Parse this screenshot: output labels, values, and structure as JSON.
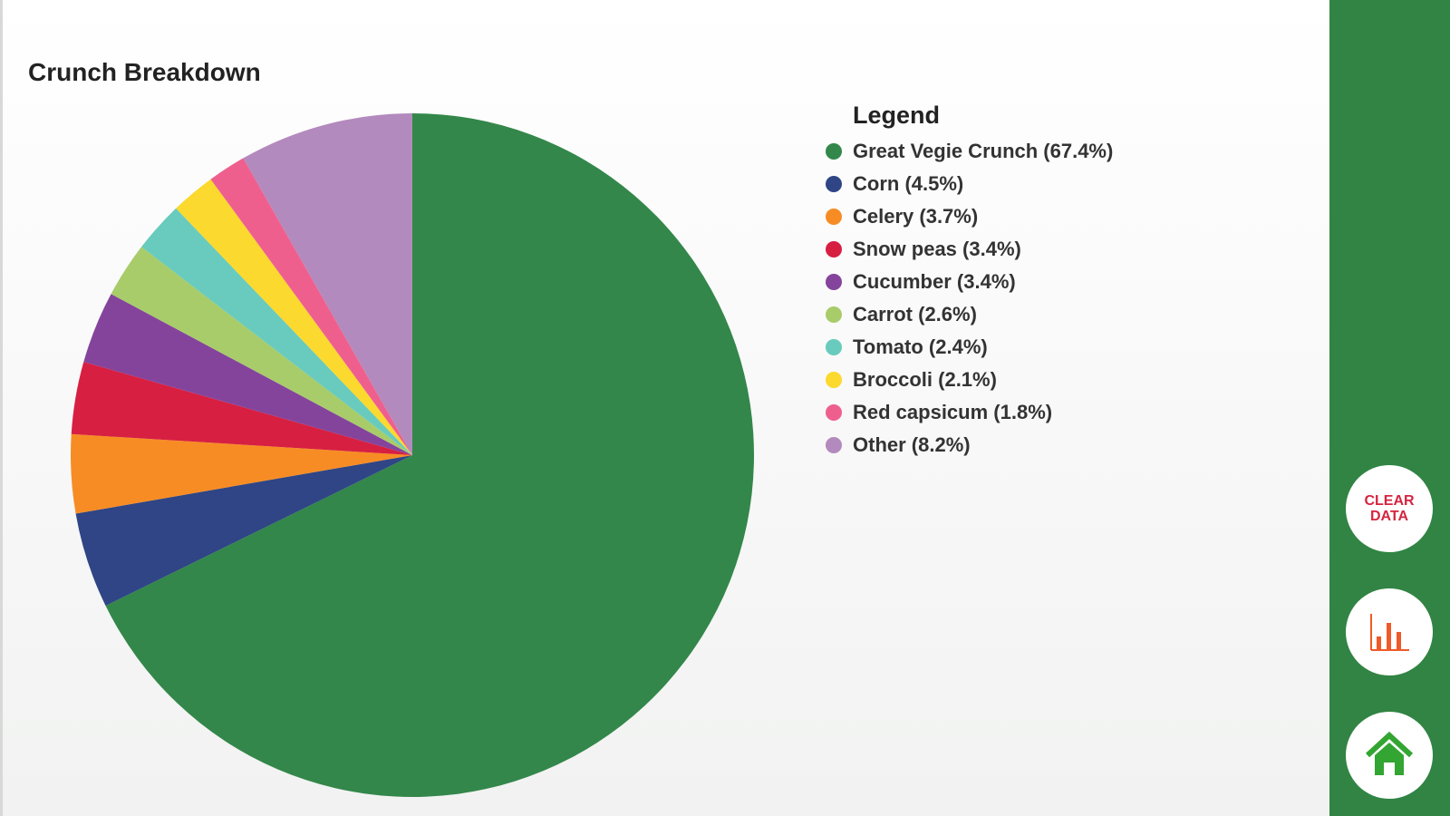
{
  "chart_data": {
    "type": "pie",
    "title": "Crunch Breakdown",
    "legend_title": "Legend",
    "legend_position": "right",
    "start_angle": "12 o'clock, clockwise",
    "slices": [
      {
        "label": "Great Vegie Crunch (67.4%)",
        "name": "Great Vegie Crunch",
        "value": 67.4,
        "color": "#33874a"
      },
      {
        "label": "Corn (4.5%)",
        "name": "Corn",
        "value": 4.5,
        "color": "#2f4585"
      },
      {
        "label": "Celery (3.7%)",
        "name": "Celery",
        "value": 3.7,
        "color": "#f78c24"
      },
      {
        "label": "Snow peas (3.4%)",
        "name": "Snow peas",
        "value": 3.4,
        "color": "#d71f42"
      },
      {
        "label": "Cucumber (3.4%)",
        "name": "Cucumber",
        "value": 3.4,
        "color": "#84449c"
      },
      {
        "label": "Carrot (2.6%)",
        "name": "Carrot",
        "value": 2.6,
        "color": "#a8cc6a"
      },
      {
        "label": "Tomato (2.4%)",
        "name": "Tomato",
        "value": 2.4,
        "color": "#68cbbd"
      },
      {
        "label": "Broccoli (2.1%)",
        "name": "Broccoli",
        "value": 2.1,
        "color": "#fbd92e"
      },
      {
        "label": "Red capsicum (1.8%)",
        "name": "Red capsicum",
        "value": 1.8,
        "color": "#ef5f8e"
      },
      {
        "label": "Other (8.2%)",
        "name": "Other",
        "value": 8.2,
        "color": "#b38abd"
      }
    ]
  },
  "sidebar": {
    "background": "#318443",
    "clear_line1": "CLEAR",
    "clear_line2": "DATA",
    "chart_icon": "bar-chart-icon",
    "home_icon": "home-icon"
  }
}
